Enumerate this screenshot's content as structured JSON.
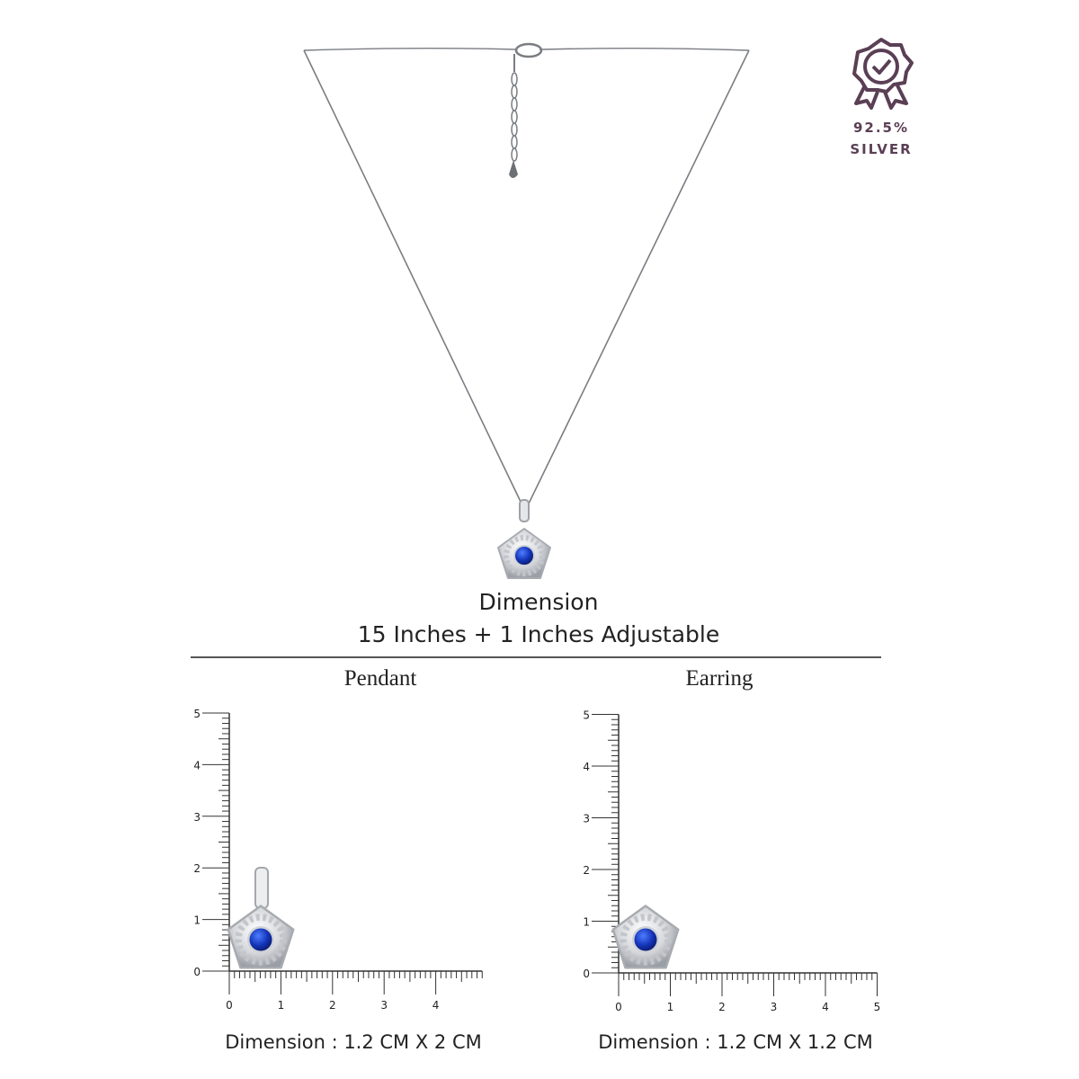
{
  "badge": {
    "purity": "92.5%",
    "metal": "SILVER"
  },
  "dimension": {
    "title": "Dimension",
    "length": "15 Inches + 1 Inches Adjustable"
  },
  "pendant": {
    "title": "Pendant",
    "y_labels": [
      0,
      1,
      2,
      3,
      4,
      5
    ],
    "x_labels": [
      0,
      1,
      2,
      3,
      4
    ],
    "caption": "Dimension : 1.2 CM X 2 CM"
  },
  "earring": {
    "title": "Earring",
    "y_labels": [
      0,
      1,
      2,
      3,
      4,
      5
    ],
    "x_labels": [
      0,
      1,
      2,
      3,
      4,
      5
    ],
    "caption": "Dimension : 1.2 CM X 1.2 CM"
  }
}
